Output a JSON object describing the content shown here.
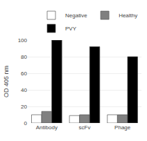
{
  "chart_data": {
    "type": "bar",
    "y_label": "OD 405 nm",
    "categories": [
      "Antibody",
      "scFv",
      "Phage"
    ],
    "series": [
      {
        "name": "Negative",
        "color": "#ffffff",
        "values": [
          10,
          9,
          10
        ]
      },
      {
        "name": "Healthy",
        "color": "#808080",
        "values": [
          14,
          10,
          10
        ]
      },
      {
        "name": "PVY",
        "color": "#000000",
        "values": [
          100,
          92,
          80
        ]
      }
    ],
    "ylim": [
      0,
      100
    ],
    "yticks": [
      0,
      20,
      40,
      60,
      80,
      100
    ],
    "grid": true,
    "legend": "upper right"
  }
}
